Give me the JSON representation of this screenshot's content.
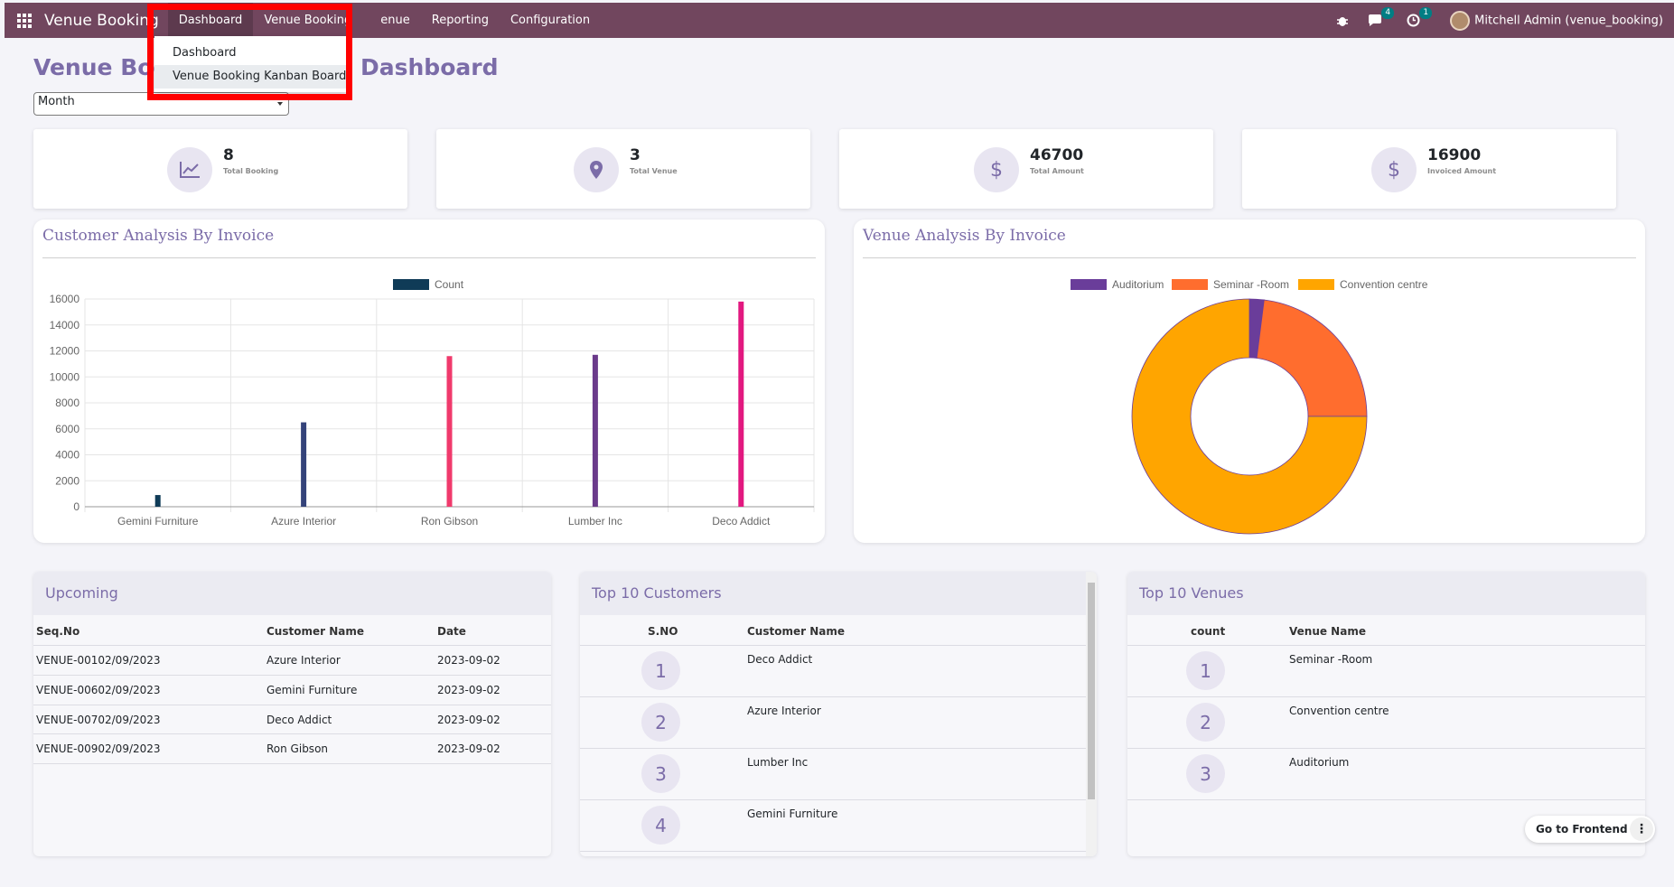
{
  "navbar": {
    "brand": "Venue Booking",
    "menu": [
      "Dashboard",
      "Venue Booking",
      "Venue",
      "Reporting",
      "Configuration"
    ],
    "menu_visible": [
      "Dashboard",
      "Venue Booking",
      "enue",
      "Reporting",
      "Configuration"
    ],
    "messages_badge": "4",
    "activities_badge": "1",
    "user": "Mitchell Admin (venue_booking)"
  },
  "dropdown": {
    "items": [
      "Dashboard",
      "Venue Booking Kanban Board"
    ]
  },
  "header": {
    "title_left": "Venue Boo",
    "title_right": "Dashboard",
    "period_select": "Month"
  },
  "kpis": [
    {
      "value": "8",
      "label": "Total Booking",
      "icon": "chart-line-icon"
    },
    {
      "value": "3",
      "label": "Total Venue",
      "icon": "map-pin-icon"
    },
    {
      "value": "46700",
      "label": "Total Amount",
      "icon": "dollar-icon"
    },
    {
      "value": "16900",
      "label": "Invoiced Amount",
      "icon": "dollar-icon"
    }
  ],
  "panels": {
    "customer_title": "Customer Analysis By Invoice",
    "venue_title": "Venue Analysis By Invoice"
  },
  "chart_data": [
    {
      "type": "bar",
      "title": "Customer Analysis By Invoice",
      "legend": [
        "Count"
      ],
      "categories": [
        "Gemini Furniture",
        "Azure Interior",
        "Ron Gibson",
        "Lumber Inc",
        "Deco Addict"
      ],
      "series": [
        {
          "name": "Count",
          "values": [
            900,
            6500,
            11600,
            11700,
            15800
          ]
        }
      ],
      "bar_colors": [
        "#0f3b57",
        "#34437a",
        "#f03a6c",
        "#6b3b8b",
        "#e2187f"
      ],
      "ylim": [
        0,
        16000
      ],
      "yticks": [
        "0",
        "2000",
        "4000",
        "6000",
        "8000",
        "10000",
        "12000",
        "14000",
        "16000"
      ],
      "grid": true,
      "legend_placement": "top"
    },
    {
      "type": "pie",
      "title": "Venue Analysis By Invoice",
      "donut": true,
      "labels": [
        "Auditorium",
        "Seminar -Room",
        "Convention centre"
      ],
      "values": [
        2,
        23,
        75
      ],
      "colors": [
        "#6a3d9a",
        "#ff6d2e",
        "#ffa500"
      ],
      "legend_placement": "top"
    }
  ],
  "upcoming": {
    "title": "Upcoming",
    "columns": [
      "Seq.No",
      "Customer Name",
      "Date"
    ],
    "rows": [
      [
        "VENUE-00102/09/2023",
        "Azure Interior",
        "2023-09-02"
      ],
      [
        "VENUE-00602/09/2023",
        "Gemini Furniture",
        "2023-09-02"
      ],
      [
        "VENUE-00702/09/2023",
        "Deco Addict",
        "2023-09-02"
      ],
      [
        "VENUE-00902/09/2023",
        "Ron Gibson",
        "2023-09-02"
      ]
    ]
  },
  "top_customers": {
    "title": "Top 10 Customers",
    "columns": [
      "S.NO",
      "Customer Name"
    ],
    "rows": [
      [
        "1",
        "Deco Addict"
      ],
      [
        "2",
        "Azure Interior"
      ],
      [
        "3",
        "Lumber Inc"
      ],
      [
        "4",
        "Gemini Furniture"
      ]
    ]
  },
  "top_venues": {
    "title": "Top 10 Venues",
    "columns": [
      "count",
      "Venue Name"
    ],
    "rows": [
      [
        "1",
        "Seminar -Room"
      ],
      [
        "2",
        "Convention centre"
      ],
      [
        "3",
        "Auditorium"
      ]
    ]
  },
  "go_frontend": "Go to Frontend"
}
